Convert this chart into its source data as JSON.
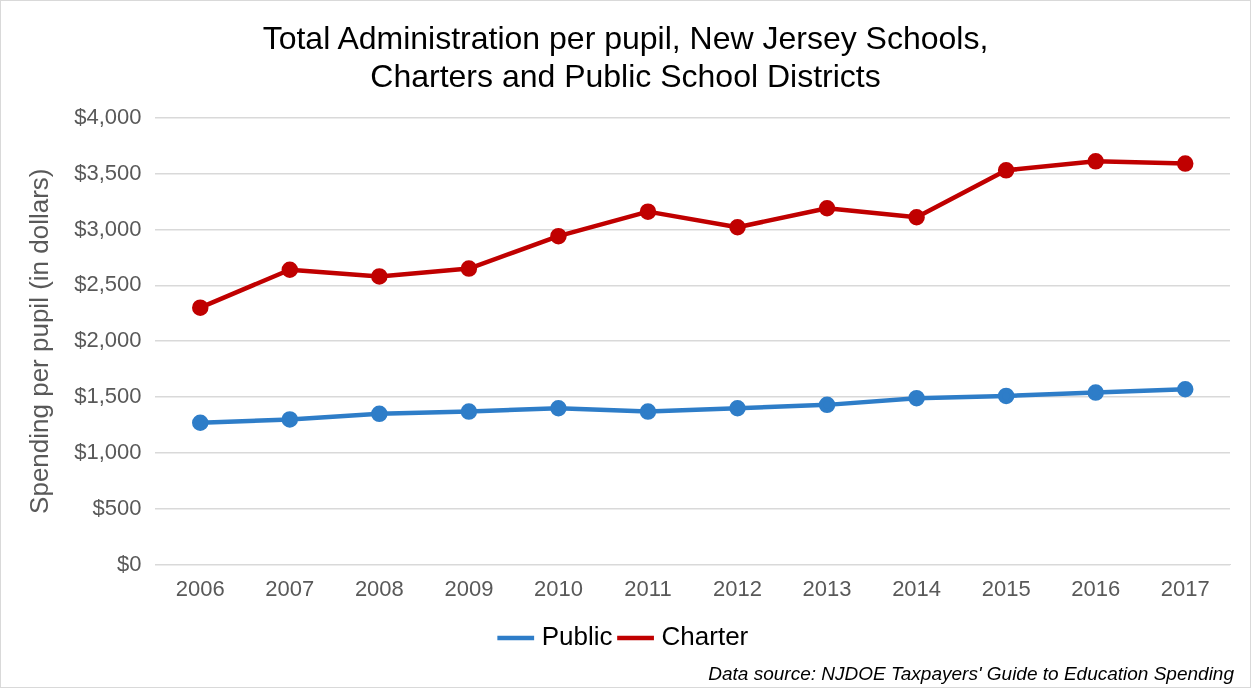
{
  "chart_data": {
    "type": "line",
    "title": "Total Administration per pupil, New Jersey Schools,\nCharters and Public School Districts",
    "ylabel": "Spending per pupil (in dollars)",
    "categories": [
      "2006",
      "2007",
      "2008",
      "2009",
      "2010",
      "2011",
      "2012",
      "2013",
      "2014",
      "2015",
      "2016",
      "2017"
    ],
    "series": [
      {
        "name": "Public",
        "color": "#2e7dc8",
        "values": [
          1270,
          1300,
          1350,
          1370,
          1400,
          1370,
          1400,
          1430,
          1490,
          1510,
          1540,
          1570
        ]
      },
      {
        "name": "Charter",
        "color": "#c00000",
        "values": [
          2300,
          2640,
          2580,
          2650,
          2940,
          3160,
          3020,
          3190,
          3110,
          3530,
          3610,
          3590
        ]
      }
    ],
    "ylim": [
      0,
      4000
    ],
    "yticks": [
      {
        "value": 0,
        "label": "$0"
      },
      {
        "value": 500,
        "label": "$500"
      },
      {
        "value": 1000,
        "label": "$1,000"
      },
      {
        "value": 1500,
        "label": "$1,500"
      },
      {
        "value": 2000,
        "label": "$2,000"
      },
      {
        "value": 2500,
        "label": "$2,500"
      },
      {
        "value": 3000,
        "label": "$3,000"
      },
      {
        "value": 3500,
        "label": "$3,500"
      },
      {
        "value": 4000,
        "label": "$4,000"
      }
    ],
    "grid": "y",
    "legend": "bottom",
    "marker": "circle",
    "line_style": "solid",
    "annotations": [
      "Data source: NJDOE Taxpayers' Guide to Education Spending"
    ]
  }
}
